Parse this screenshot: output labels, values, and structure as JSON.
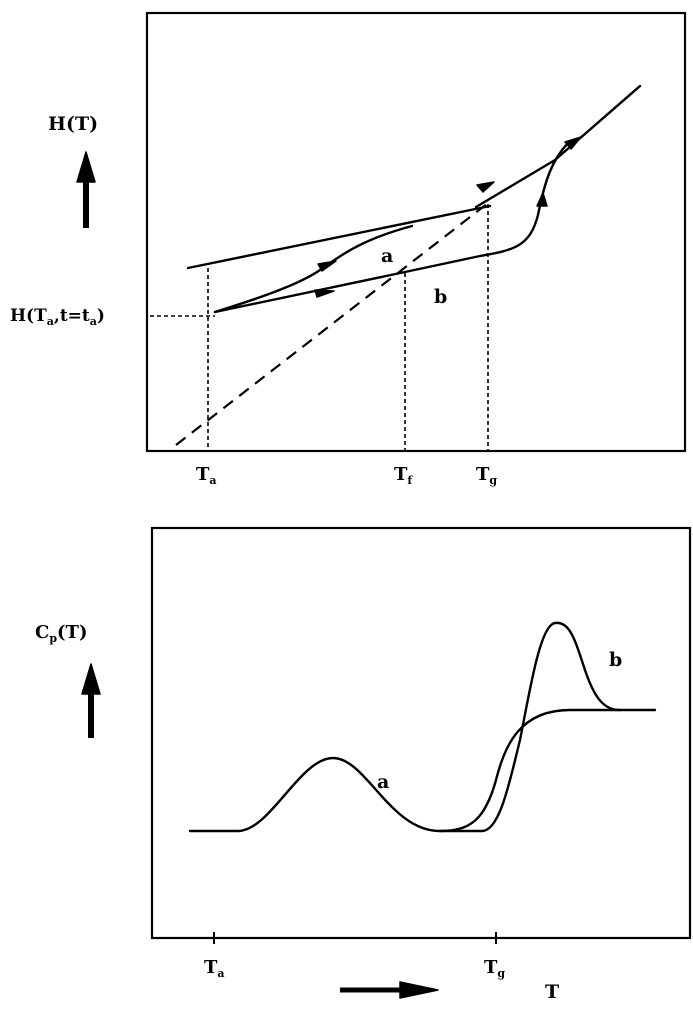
{
  "top_panel": {
    "y_label": "H(T)",
    "start_label_main": "H(T",
    "start_label_sub1": "a",
    "start_label_mid": ",t=t",
    "start_label_sub2": "a",
    "start_label_end": ")",
    "curve_a_label": "a",
    "curve_b_label": "b",
    "tick_Ta_main": "T",
    "tick_Ta_sub": "a",
    "tick_Tf_main": "T",
    "tick_Tf_sub": "f",
    "tick_Tg_main": "T",
    "tick_Tg_sub": "g"
  },
  "bottom_panel": {
    "y_label_main": "C",
    "y_label_sub": "p",
    "y_label_end": "(T)",
    "curve_a_label": "a",
    "curve_b_label": "b",
    "tick_Ta_main": "T",
    "tick_Ta_sub": "a",
    "tick_Tg_main": "T",
    "tick_Tg_sub": "g",
    "x_label": "T"
  }
}
